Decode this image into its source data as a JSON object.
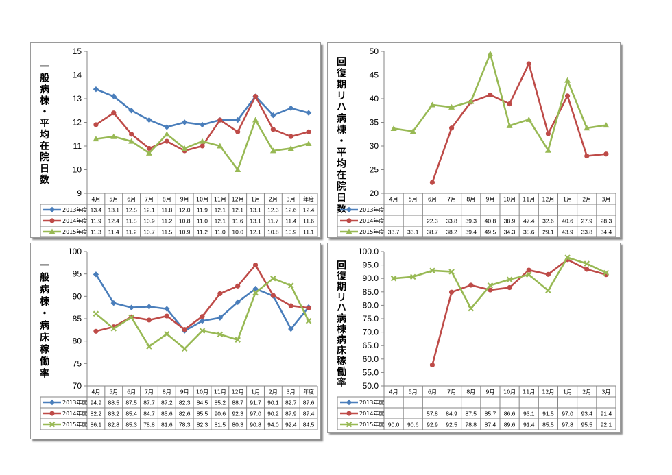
{
  "colors": {
    "s2013": "#4a7ebb",
    "s2014": "#be4b48",
    "s2015": "#98b954"
  },
  "chart_data": [
    {
      "type": "line",
      "title_vertical": "一般病棟・平均在院日数",
      "categories": [
        "4月",
        "5月",
        "6月",
        "7月",
        "8月",
        "9月",
        "10月",
        "11月",
        "12月",
        "1月",
        "2月",
        "3月",
        "年度"
      ],
      "ylim": [
        9,
        15
      ],
      "ystep": 1,
      "ydecimals": 0,
      "series": [
        {
          "name": "2013年度",
          "marker": "diamond",
          "values": [
            13.4,
            13.1,
            12.5,
            12.1,
            11.8,
            12.0,
            11.9,
            12.1,
            12.1,
            13.1,
            12.3,
            12.6,
            12.4
          ],
          "labels": [
            "13.4",
            "13.1",
            "12.5",
            "12.1",
            "11.8",
            "12.0",
            "11.9",
            "12.1",
            "12.1",
            "13.1",
            "12.3",
            "12.6",
            "12.4"
          ]
        },
        {
          "name": "2014年度",
          "marker": "circle",
          "values": [
            11.9,
            12.4,
            11.5,
            10.9,
            11.2,
            10.8,
            11.0,
            12.1,
            11.6,
            13.1,
            11.7,
            11.4,
            11.6
          ],
          "labels": [
            "11.9",
            "12.4",
            "11.5",
            "10.9",
            "11.2",
            "10.8",
            "11.0",
            "12.1",
            "11.6",
            "13.1",
            "11.7",
            "11.4",
            "11.6"
          ]
        },
        {
          "name": "2015年度",
          "marker": "triangle",
          "values": [
            11.3,
            11.4,
            11.2,
            10.7,
            11.5,
            10.9,
            11.2,
            11.0,
            10.0,
            12.1,
            10.8,
            10.9,
            11.1
          ],
          "labels": [
            "11.3",
            "11.4",
            "11.2",
            "10.7",
            "11.5",
            "10.9",
            "11.2",
            "11.0",
            "10.0",
            "12.1",
            "10.8",
            "10.9",
            "11.1"
          ]
        }
      ]
    },
    {
      "type": "line",
      "title_vertical": "回復期リハ病棟・平均在院日数",
      "categories": [
        "4月",
        "5月",
        "6月",
        "7月",
        "8月",
        "9月",
        "10月",
        "11月",
        "12月",
        "1月",
        "2月",
        "3月"
      ],
      "ylim": [
        20,
        50
      ],
      "ystep": 5,
      "ydecimals": 0,
      "series": [
        {
          "name": "2013年度",
          "marker": "diamond",
          "values": [
            null,
            null,
            null,
            null,
            null,
            null,
            null,
            null,
            null,
            null,
            null,
            null
          ],
          "labels": [
            "",
            "",
            "",
            "",
            "",
            "",
            "",
            "",
            "",
            "",
            "",
            ""
          ]
        },
        {
          "name": "2014年度",
          "marker": "circle",
          "values": [
            null,
            null,
            22.3,
            33.8,
            39.3,
            40.8,
            38.9,
            47.4,
            32.6,
            40.6,
            27.9,
            28.3
          ],
          "labels": [
            "",
            "",
            "22.3",
            "33.8",
            "39.3",
            "40.8",
            "38.9",
            "47.4",
            "32.6",
            "40.6",
            "27.9",
            "28.3"
          ]
        },
        {
          "name": "2015年度",
          "marker": "triangle",
          "values": [
            33.7,
            33.1,
            38.7,
            38.2,
            39.4,
            49.5,
            34.3,
            35.6,
            29.1,
            43.9,
            33.8,
            34.4
          ],
          "labels": [
            "33.7",
            "33.1",
            "38.7",
            "38.2",
            "39.4",
            "49.5",
            "34.3",
            "35.6",
            "29.1",
            "43.9",
            "33.8",
            "34.4"
          ]
        }
      ]
    },
    {
      "type": "line",
      "title_vertical": "一般病棟・病床稼働率",
      "categories": [
        "4月",
        "5月",
        "6月",
        "7月",
        "8月",
        "9月",
        "10月",
        "11月",
        "12月",
        "1月",
        "2月",
        "3月",
        "年度"
      ],
      "ylim": [
        70,
        100
      ],
      "ystep": 5,
      "ydecimals": 0,
      "series": [
        {
          "name": "2013年度",
          "marker": "diamond",
          "values": [
            94.9,
            88.5,
            87.5,
            87.7,
            87.2,
            82.3,
            84.5,
            85.2,
            88.7,
            91.7,
            90.1,
            82.7,
            87.6
          ],
          "labels": [
            "94.9",
            "88.5",
            "87.5",
            "87.7",
            "87.2",
            "82.3",
            "84.5",
            "85.2",
            "88.7",
            "91.7",
            "90.1",
            "82.7",
            "87.6"
          ]
        },
        {
          "name": "2014年度",
          "marker": "circle",
          "values": [
            82.2,
            83.2,
            85.4,
            84.7,
            85.6,
            82.6,
            85.5,
            90.6,
            92.3,
            97.0,
            90.2,
            87.9,
            87.4
          ],
          "labels": [
            "82.2",
            "83.2",
            "85.4",
            "84.7",
            "85.6",
            "82.6",
            "85.5",
            "90.6",
            "92.3",
            "97.0",
            "90.2",
            "87.9",
            "87.4"
          ]
        },
        {
          "name": "2015年度",
          "marker": "x",
          "values": [
            86.1,
            82.8,
            85.3,
            78.8,
            81.6,
            78.3,
            82.3,
            81.5,
            80.3,
            90.8,
            94.0,
            92.4,
            84.5
          ],
          "labels": [
            "86.1",
            "82.8",
            "85.3",
            "78.8",
            "81.6",
            "78.3",
            "82.3",
            "81.5",
            "80.3",
            "90.8",
            "94.0",
            "92.4",
            "84.5"
          ]
        }
      ]
    },
    {
      "type": "line",
      "title_vertical": "回復期リハ病棟病床稼働率",
      "categories": [
        "4月",
        "5月",
        "6月",
        "7月",
        "8月",
        "9月",
        "10月",
        "11月",
        "12月",
        "1月",
        "2月",
        "3月"
      ],
      "ylim": [
        50,
        100
      ],
      "ystep": 5,
      "ydecimals": 1,
      "series": [
        {
          "name": "2013年度",
          "marker": "diamond",
          "values": [
            null,
            null,
            null,
            null,
            null,
            null,
            null,
            null,
            null,
            null,
            null,
            null
          ],
          "labels": [
            "",
            "",
            "",
            "",
            "",
            "",
            "",
            "",
            "",
            "",
            "",
            ""
          ]
        },
        {
          "name": "2014年度",
          "marker": "circle",
          "values": [
            null,
            null,
            57.8,
            84.9,
            87.5,
            85.7,
            86.6,
            93.1,
            91.5,
            97.0,
            93.4,
            91.4
          ],
          "labels": [
            "",
            "",
            "57.8",
            "84.9",
            "87.5",
            "85.7",
            "86.6",
            "93.1",
            "91.5",
            "97.0",
            "93.4",
            "91.4"
          ]
        },
        {
          "name": "2015年度",
          "marker": "x",
          "values": [
            90.0,
            90.6,
            92.9,
            92.5,
            78.8,
            87.4,
            89.6,
            91.4,
            85.5,
            97.8,
            95.5,
            92.1
          ],
          "labels": [
            "90.0",
            "90.6",
            "92.9",
            "92.5",
            "78.8",
            "87.4",
            "89.6",
            "91.4",
            "85.5",
            "97.8",
            "95.5",
            "92.1"
          ]
        }
      ]
    }
  ]
}
